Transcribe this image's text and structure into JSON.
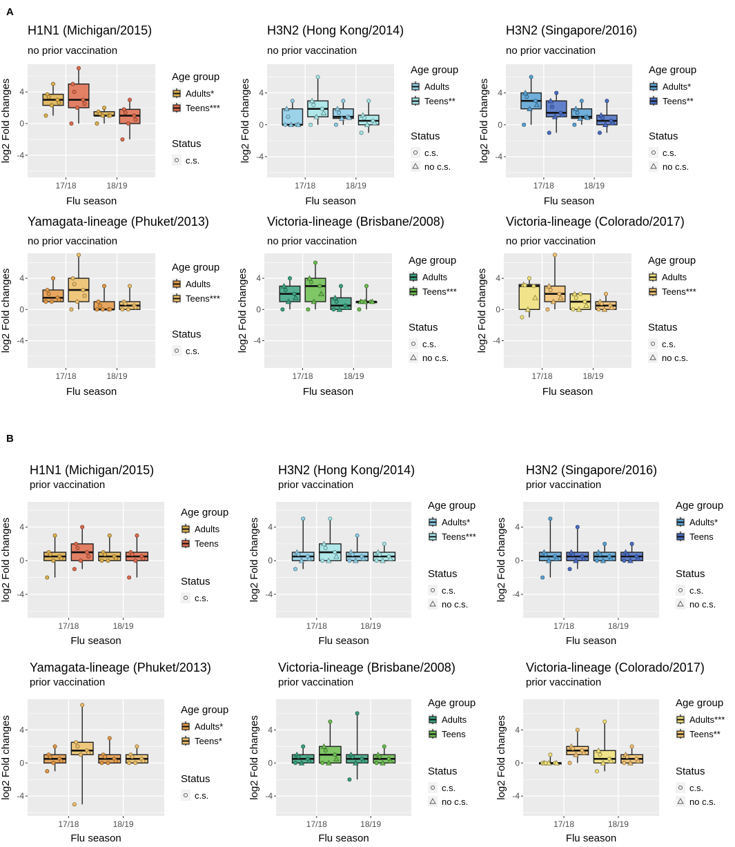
{
  "figure": {
    "section_a": "A",
    "section_b": "B",
    "legend": {
      "age_title": "Age group",
      "status_title": "Status",
      "status_cs": "c.s.",
      "status_nocs": "no c.s."
    },
    "colors": {
      "h1n1": [
        "#e0b24f",
        "#e06d4e"
      ],
      "h3n2hk": [
        "#8fcfe8",
        "#a6e8ea"
      ],
      "h3n2sg": [
        "#5aa4d6",
        "#4a6fc6"
      ],
      "yam": [
        "#e59a46",
        "#efc16a"
      ],
      "vicbr": [
        "#3aa381",
        "#6cbf50"
      ],
      "vicco": [
        "#f1e279",
        "#f3c271"
      ],
      "panel_bg": "#ebebeb",
      "grid": "#ffffff"
    }
  },
  "chart_data": [
    {
      "type": "box",
      "section": "A",
      "title": "H1N1 (Michigan/2015)",
      "subtitle": "no prior vaccination",
      "xlabel": "Flu season",
      "ylabel": "log2 Fold changes",
      "ylim": [
        -6.8,
        7.5
      ],
      "yticks": [
        "4",
        "0",
        "-4"
      ],
      "categories": [
        "17/18",
        "18/19"
      ],
      "legend_labels": [
        "Adults*",
        "Teens***"
      ],
      "status": [
        "c.s."
      ],
      "palette": "h1n1",
      "series": [
        {
          "name": "Adults",
          "boxes": [
            [
              1,
              2.3,
              3,
              3.7,
              5
            ],
            [
              0,
              1,
              1,
              1.5,
              2
            ]
          ]
        },
        {
          "name": "Teens",
          "boxes": [
            [
              0,
              2,
              3,
              5,
              7
            ],
            [
              -2,
              0,
              1,
              1.8,
              3
            ]
          ]
        }
      ]
    },
    {
      "type": "box",
      "section": "A",
      "title": "H3N2 (Hong Kong/2014)",
      "subtitle": "no prior vaccination",
      "xlabel": "Flu season",
      "ylabel": "log2 Fold changes",
      "ylim": [
        -6.6,
        7.6
      ],
      "yticks": [
        "4",
        "0",
        "-4"
      ],
      "categories": [
        "17/18",
        "18/19"
      ],
      "legend_labels": [
        "Adults",
        "Teens**"
      ],
      "status": [
        "c.s.",
        "no c.s."
      ],
      "palette": "h3n2hk",
      "series": [
        {
          "name": "Adults",
          "boxes": [
            [
              0,
              0,
              0,
              2,
              3
            ],
            [
              0,
              0.8,
              1,
              2,
              3
            ]
          ]
        },
        {
          "name": "Teens",
          "boxes": [
            [
              0,
              1,
              2,
              3,
              6
            ],
            [
              -1,
              0,
              0.5,
              1.2,
              3
            ]
          ]
        }
      ]
    },
    {
      "type": "box",
      "section": "A",
      "title": "H3N2 (Singapore/2016)",
      "subtitle": "no prior vaccination",
      "xlabel": "Flu season",
      "ylabel": "log2 Fold changes",
      "ylim": [
        -6.6,
        7.6
      ],
      "yticks": [
        "4",
        "0",
        "-4"
      ],
      "categories": [
        "17/18",
        "18/19"
      ],
      "legend_labels": [
        "Adults*",
        "Teens**"
      ],
      "status": [
        "c.s.",
        "no c.s."
      ],
      "palette": "h3n2sg",
      "series": [
        {
          "name": "Adults",
          "boxes": [
            [
              0,
              2,
              3,
              4,
              6
            ],
            [
              0,
              0.8,
              1,
              2,
              3
            ]
          ]
        },
        {
          "name": "Teens",
          "boxes": [
            [
              -1,
              1,
              1.5,
              3,
              4
            ],
            [
              -1,
              0,
              0.5,
              1.2,
              3
            ]
          ]
        }
      ]
    },
    {
      "type": "box",
      "section": "A",
      "title": "Yamagata-lineage (Phuket/2013)",
      "subtitle": "no prior vaccination",
      "xlabel": "Flu season",
      "ylabel": "log2 Fold changes",
      "ylim": [
        -7.5,
        7.2
      ],
      "yticks": [
        "4",
        "0",
        "-4"
      ],
      "categories": [
        "17/18",
        "18/19"
      ],
      "legend_labels": [
        "Adults",
        "Teens***"
      ],
      "status": [
        "c.s."
      ],
      "palette": "yam",
      "series": [
        {
          "name": "Adults",
          "boxes": [
            [
              1,
              1,
              1.5,
              2.5,
              4
            ],
            [
              0,
              0,
              0,
              1,
              3
            ]
          ]
        },
        {
          "name": "Teens",
          "boxes": [
            [
              0,
              1,
              2.5,
              4,
              7
            ],
            [
              0,
              0,
              0.5,
              1,
              3
            ]
          ]
        }
      ]
    },
    {
      "type": "box",
      "section": "A",
      "title": "Victoria-lineage (Brisbane/2008)",
      "subtitle": "no prior vaccination",
      "xlabel": "Flu season",
      "ylabel": "log2 Fold changes",
      "ylim": [
        -7.5,
        7.2
      ],
      "yticks": [
        "4",
        "0",
        "-4"
      ],
      "categories": [
        "17/18",
        "18/19"
      ],
      "legend_labels": [
        "Adults",
        "Teens***"
      ],
      "status": [
        "c.s.",
        "no c.s."
      ],
      "palette": "vicbr",
      "series": [
        {
          "name": "Adults",
          "boxes": [
            [
              0,
              1,
              2,
              3,
              4
            ],
            [
              0,
              0,
              0.5,
              1.5,
              3
            ]
          ]
        },
        {
          "name": "Teens",
          "boxes": [
            [
              0,
              1,
              3,
              4,
              6
            ],
            [
              0,
              1,
              1,
              1,
              3
            ]
          ]
        }
      ]
    },
    {
      "type": "box",
      "section": "A",
      "title": "Victoria-lineage (Colorado/2017)",
      "subtitle": "no prior vaccination",
      "xlabel": "Flu season",
      "ylabel": "log2 Fold changes",
      "ylim": [
        -7.5,
        7.2
      ],
      "yticks": [
        "4",
        "0",
        "-4"
      ],
      "categories": [
        "17/18",
        "18/19"
      ],
      "legend_labels": [
        "Adults",
        "Teens***"
      ],
      "status": [
        "c.s.",
        "no c.s."
      ],
      "palette": "vicco",
      "series": [
        {
          "name": "Adults",
          "boxes": [
            [
              -1,
              0,
              3,
              3.2,
              4
            ],
            [
              0,
              0,
              1,
              2,
              2
            ]
          ]
        },
        {
          "name": "Teens",
          "boxes": [
            [
              0,
              1,
              2,
              3,
              7
            ],
            [
              0,
              0,
              0.5,
              1,
              2
            ]
          ]
        }
      ]
    },
    {
      "type": "box",
      "section": "B",
      "title": "H1N1 (Michigan/2015)",
      "subtitle": "prior vaccination",
      "xlabel": "Flu season",
      "ylabel": "log2 Fold changes",
      "ylim": [
        -6.8,
        7.0
      ],
      "yticks": [
        "4",
        "0",
        "-4"
      ],
      "categories": [
        "17/18",
        "18/19"
      ],
      "legend_labels": [
        "Adults",
        "Teens"
      ],
      "status": [
        "c.s."
      ],
      "palette": "h1n1",
      "series": [
        {
          "name": "Adults",
          "boxes": [
            [
              -2,
              0,
              0.5,
              1,
              3
            ],
            [
              0,
              0,
              0.5,
              1,
              3
            ]
          ]
        },
        {
          "name": "Teens",
          "boxes": [
            [
              -1,
              0,
              1,
              2,
              4
            ],
            [
              -2,
              0,
              0.5,
              1,
              3
            ]
          ]
        }
      ]
    },
    {
      "type": "box",
      "section": "B",
      "title": "H3N2 (Hong Kong/2014)",
      "subtitle": "prior vaccination",
      "xlabel": "Flu season",
      "ylabel": "log2 Fold changes",
      "ylim": [
        -6.8,
        7.0
      ],
      "yticks": [
        "4",
        "0",
        "-4"
      ],
      "categories": [
        "17/18",
        "18/19"
      ],
      "legend_labels": [
        "Adults*",
        "Teens***"
      ],
      "status": [
        "c.s.",
        "no c.s."
      ],
      "palette": "h3n2hk",
      "series": [
        {
          "name": "Adults",
          "boxes": [
            [
              -1,
              0,
              0.5,
              1,
              5
            ],
            [
              0,
              0,
              0.5,
              1,
              3
            ]
          ]
        },
        {
          "name": "Teens",
          "boxes": [
            [
              0,
              0,
              1,
              2,
              5
            ],
            [
              0,
              0,
              0.5,
              1,
              2
            ]
          ]
        }
      ]
    },
    {
      "type": "box",
      "section": "B",
      "title": "H3N2 (Singapore/2016)",
      "subtitle": "prior vaccination",
      "xlabel": "Flu season",
      "ylabel": "log2 Fold changes",
      "ylim": [
        -6.8,
        7.0
      ],
      "yticks": [
        "4",
        "0",
        "-4"
      ],
      "categories": [
        "17/18",
        "18/19"
      ],
      "legend_labels": [
        "Adults*",
        "Teens"
      ],
      "status": [
        "c.s.",
        "no c.s."
      ],
      "palette": "h3n2sg",
      "series": [
        {
          "name": "Adults",
          "boxes": [
            [
              -2,
              0,
              0.5,
              1,
              5
            ],
            [
              0,
              0,
              0.5,
              1,
              2
            ]
          ]
        },
        {
          "name": "Teens",
          "boxes": [
            [
              -1,
              0,
              0.5,
              1,
              4
            ],
            [
              0,
              0,
              0.5,
              1,
              2
            ]
          ]
        }
      ]
    },
    {
      "type": "box",
      "section": "B",
      "title": "Yamagata-lineage (Phuket/2013)",
      "subtitle": "prior vaccination",
      "xlabel": "Flu season",
      "ylabel": "log2 Fold changes",
      "ylim": [
        -6.4,
        7.7
      ],
      "yticks": [
        "4",
        "0",
        "-4"
      ],
      "categories": [
        "17/18",
        "18/19"
      ],
      "legend_labels": [
        "Adults*",
        "Teens*"
      ],
      "status": [
        "c.s."
      ],
      "palette": "yam",
      "series": [
        {
          "name": "Adults",
          "boxes": [
            [
              -1,
              0,
              0.5,
              1,
              2
            ],
            [
              0,
              0,
              0.5,
              1,
              3
            ]
          ]
        },
        {
          "name": "Teens",
          "boxes": [
            [
              -5,
              1,
              1.5,
              2.5,
              7
            ],
            [
              0,
              0,
              0.5,
              1,
              2
            ]
          ]
        }
      ]
    },
    {
      "type": "box",
      "section": "B",
      "title": "Victoria-lineage (Brisbane/2008)",
      "subtitle": "prior vaccination",
      "xlabel": "Flu season",
      "ylabel": "log2 Fold changes",
      "ylim": [
        -6.4,
        7.7
      ],
      "yticks": [
        "4",
        "0",
        "-4"
      ],
      "categories": [
        "17/18",
        "18/19"
      ],
      "legend_labels": [
        "Adults",
        "Teens"
      ],
      "status": [
        "c.s.",
        "no c.s."
      ],
      "palette": "vicbr",
      "series": [
        {
          "name": "Adults",
          "boxes": [
            [
              0,
              0,
              0.5,
              1,
              2
            ],
            [
              -2,
              0,
              0.5,
              1,
              6
            ]
          ]
        },
        {
          "name": "Teens",
          "boxes": [
            [
              0,
              0,
              1,
              2,
              5
            ],
            [
              0,
              0,
              0.5,
              1,
              2
            ]
          ]
        }
      ]
    },
    {
      "type": "box",
      "section": "B",
      "title": "Victoria-lineage (Colorado/2017)",
      "subtitle": "prior vaccination",
      "xlabel": "Flu season",
      "ylabel": "log2 Fold changes",
      "ylim": [
        -6.4,
        7.7
      ],
      "yticks": [
        "4",
        "0",
        "-4"
      ],
      "categories": [
        "17/18",
        "18/19"
      ],
      "legend_labels": [
        "Adults***",
        "Teens**"
      ],
      "status": [
        "c.s.",
        "no c.s."
      ],
      "palette": "vicco",
      "series": [
        {
          "name": "Adults",
          "boxes": [
            [
              0,
              0,
              0,
              0,
              1
            ],
            [
              -1,
              0,
              0.5,
              1.5,
              5
            ]
          ]
        },
        {
          "name": "Teens",
          "boxes": [
            [
              0,
              1,
              1.5,
              2,
              4
            ],
            [
              0,
              0,
              0.5,
              1,
              2
            ]
          ]
        }
      ]
    }
  ]
}
